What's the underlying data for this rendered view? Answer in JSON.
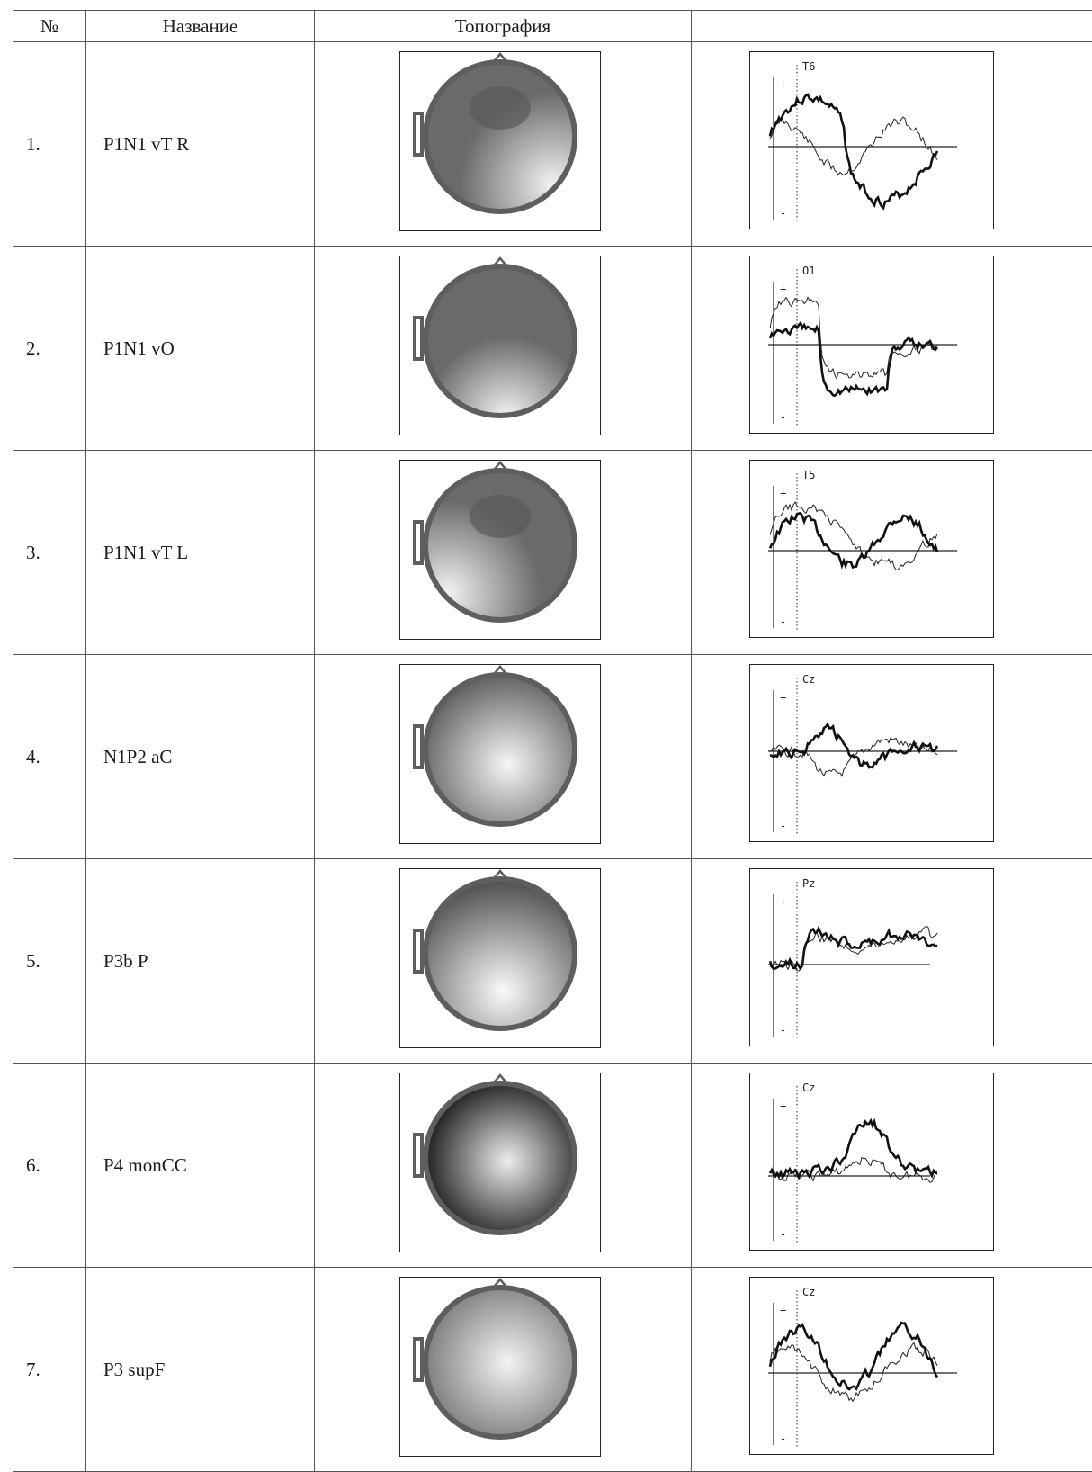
{
  "header": {
    "num": "№",
    "name": "Название",
    "topo": "Топография",
    "wave": ""
  },
  "rows": [
    {
      "num": "1.",
      "name": "P1N1 vT R",
      "channel": "T6",
      "topo": "p1n1_vtr"
    },
    {
      "num": "2.",
      "name": "P1N1 vO",
      "channel": "O1",
      "topo": "p1n1_vo"
    },
    {
      "num": "3.",
      "name": "P1N1 vT L",
      "channel": "T5",
      "topo": "p1n1_vtl"
    },
    {
      "num": "4.",
      "name": "N1P2 aC",
      "channel": "Cz",
      "topo": "n1p2_ac"
    },
    {
      "num": "5.",
      "name": "P3b P",
      "channel": "Pz",
      "topo": "p3b_p"
    },
    {
      "num": "6.",
      "name": "P4 monCC",
      "channel": "Cz",
      "topo": "p4_moncc",
      "mark": "*"
    },
    {
      "num": "7.",
      "name": "P3 supF",
      "channel": "Cz",
      "topo": "p3_supf"
    }
  ],
  "wave_symbols": {
    "plus": "+",
    "minus": "-"
  },
  "colors": {
    "head_outline": "#5e5e5e",
    "head_fill": "#6a6a6a",
    "line": "#222222"
  }
}
